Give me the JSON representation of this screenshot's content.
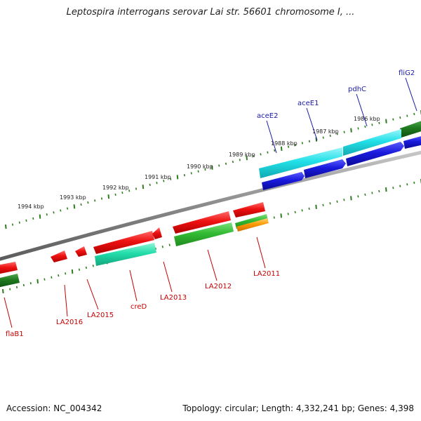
{
  "title": "Leptospira interrogans serovar Lai str. 56601 chromosome I, ...",
  "footer": {
    "accession": "Accession: NC_004342",
    "summary": "Topology: circular; Length: 4,332,241 bp; Genes: 4,398"
  },
  "colors": {
    "backbone": "#8a8a8a",
    "tick": "#2e7d1e",
    "red_gene": "#ee1111",
    "green_gene": "#33bb33",
    "dark_green_gene": "#1f7a1f",
    "teal_gene": "#22ddaa",
    "cyan_gene": "#22e0e8",
    "blue_gene": "#1a1add",
    "orange_gene": "#ff9900",
    "blue_label": "#1a1aa6",
    "red_label": "#c40000"
  },
  "kbp_labels": [
    "1986 kbp",
    "1987 kbp",
    "1988 kbp",
    "1989 kbp",
    "1990 kbp",
    "1991 kbp",
    "1992 kbp",
    "1993 kbp",
    "1994 kbp"
  ],
  "top_gene_labels": [
    "fliG2",
    "pdhC",
    "aceE1",
    "aceE2"
  ],
  "bottom_gene_labels": [
    "LA2011",
    "LA2012",
    "LA2013",
    "creD",
    "LA2015",
    "LA2016",
    "flaB1"
  ]
}
